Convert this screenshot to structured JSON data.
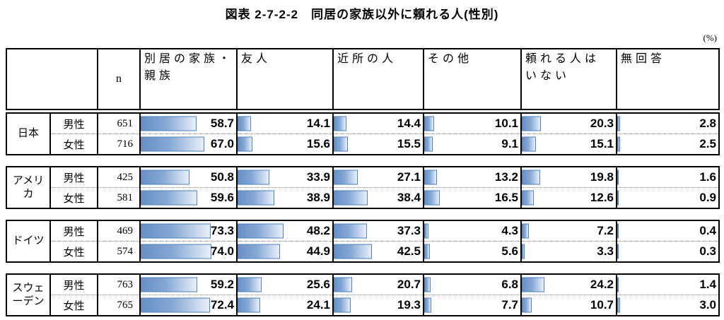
{
  "title": "図表 2-7-2-2　同居の家族以外に頼れる人(性別)",
  "unit_label": "(%)",
  "header": {
    "n_label": "n",
    "category_labels": [
      "別居の家族・\n親族",
      "友人",
      "近所の人",
      "その他",
      "頼れる人は\nいない",
      "無回答"
    ]
  },
  "colors": {
    "bar_border": "#4f81bd",
    "bar_fill_start": "#6890c6",
    "bar_fill_end": "#e9effa",
    "grid_border": "#000000",
    "row_divider": "#8f8f8f"
  },
  "chart_data": {
    "type": "table",
    "title": "図表 2-7-2-2　同居の家族以外に頼れる人(性別)",
    "unit": "%",
    "bar_axis_max": 100,
    "columns": [
      "別居の家族・親族",
      "友人",
      "近所の人",
      "その他",
      "頼れる人はいない",
      "無回答"
    ],
    "groups": [
      {
        "country": "日本",
        "rows": [
          {
            "gender": "男性",
            "n": "651",
            "values": [
              "58.7",
              "14.1",
              "14.4",
              "10.1",
              "20.3",
              "2.8"
            ]
          },
          {
            "gender": "女性",
            "n": "716",
            "values": [
              "67.0",
              "15.6",
              "15.5",
              "9.1",
              "15.1",
              "2.5"
            ]
          }
        ]
      },
      {
        "country": "アメリカ",
        "rows": [
          {
            "gender": "男性",
            "n": "425",
            "values": [
              "50.8",
              "33.9",
              "27.1",
              "13.2",
              "19.8",
              "1.6"
            ]
          },
          {
            "gender": "女性",
            "n": "581",
            "values": [
              "59.6",
              "38.9",
              "38.4",
              "16.5",
              "12.6",
              "0.9"
            ]
          }
        ]
      },
      {
        "country": "ドイツ",
        "rows": [
          {
            "gender": "男性",
            "n": "469",
            "values": [
              "73.3",
              "48.2",
              "37.3",
              "4.3",
              "7.2",
              "0.4"
            ]
          },
          {
            "gender": "女性",
            "n": "574",
            "values": [
              "74.0",
              "44.9",
              "42.5",
              "5.6",
              "3.3",
              "0.3"
            ]
          }
        ]
      },
      {
        "country": "スウェーデン",
        "rows": [
          {
            "gender": "男性",
            "n": "763",
            "values": [
              "59.2",
              "25.6",
              "20.7",
              "6.8",
              "24.2",
              "1.4"
            ]
          },
          {
            "gender": "女性",
            "n": "765",
            "values": [
              "72.4",
              "24.1",
              "19.3",
              "7.7",
              "10.7",
              "3.0"
            ]
          }
        ]
      }
    ]
  }
}
